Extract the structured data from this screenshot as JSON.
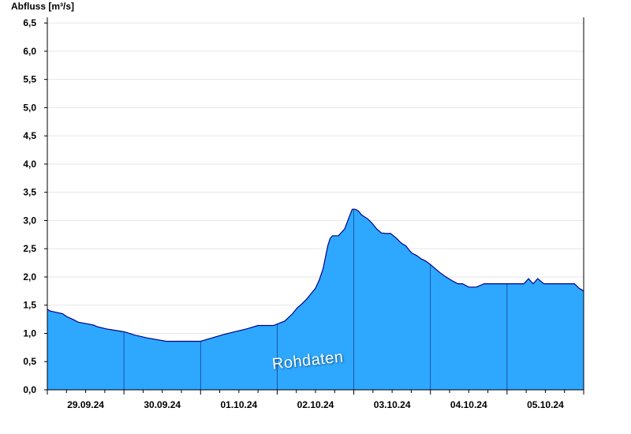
{
  "chart_data": {
    "type": "area",
    "ylabel": "Abfluss [m³/s]",
    "ylim": [
      0,
      6.6
    ],
    "yticks": [
      "0,0",
      "0,5",
      "1,0",
      "1,5",
      "2,0",
      "2,5",
      "3,0",
      "3,5",
      "4,0",
      "4,5",
      "5,0",
      "5,5",
      "6,0",
      "6,5"
    ],
    "xlim": [
      0,
      7
    ],
    "day_labels": [
      "29.09.24",
      "30.09.24",
      "01.10.24",
      "02.10.24",
      "03.10.24",
      "04.10.24",
      "05.10.24"
    ],
    "grid": true,
    "fill_color": "#2ea8ff",
    "line_color": "#00008b",
    "annotation": "Rohdaten",
    "series": [
      {
        "x": [
          0.0,
          0.03,
          0.2,
          0.25,
          0.33,
          0.4,
          0.6,
          0.65,
          0.77,
          0.95,
          1.0,
          1.14,
          1.3,
          1.55,
          1.9,
          2.0,
          2.15,
          2.3,
          2.45,
          2.6,
          2.75,
          2.85,
          2.95,
          3.1,
          3.2,
          3.26,
          3.32,
          3.38,
          3.44,
          3.5,
          3.55,
          3.6,
          3.63,
          3.66,
          3.69,
          3.72,
          3.75,
          3.8,
          3.88,
          3.95,
          3.98,
          4.02,
          4.06,
          4.1,
          4.18,
          4.24,
          4.3,
          4.36,
          4.42,
          4.48,
          4.56,
          4.62,
          4.68,
          4.72,
          4.76,
          4.82,
          4.88,
          4.94,
          5.0,
          5.06,
          5.12,
          5.18,
          5.24,
          5.3,
          5.36,
          5.42,
          5.5,
          5.6,
          5.7,
          5.8,
          5.9,
          6.0,
          6.15,
          6.22,
          6.28,
          6.34,
          6.4,
          6.48,
          6.55,
          6.6,
          6.7,
          6.8,
          6.88,
          6.94,
          7.0
        ],
        "y": [
          1.43,
          1.4,
          1.35,
          1.3,
          1.25,
          1.2,
          1.15,
          1.12,
          1.08,
          1.04,
          1.03,
          0.97,
          0.92,
          0.86,
          0.86,
          0.86,
          0.92,
          0.98,
          1.03,
          1.08,
          1.14,
          1.14,
          1.14,
          1.22,
          1.35,
          1.45,
          1.52,
          1.6,
          1.7,
          1.8,
          1.95,
          2.15,
          2.35,
          2.55,
          2.68,
          2.73,
          2.73,
          2.73,
          2.85,
          3.1,
          3.2,
          3.2,
          3.17,
          3.1,
          3.03,
          2.95,
          2.85,
          2.78,
          2.77,
          2.77,
          2.68,
          2.6,
          2.55,
          2.48,
          2.42,
          2.38,
          2.32,
          2.28,
          2.22,
          2.15,
          2.08,
          2.02,
          1.97,
          1.92,
          1.88,
          1.88,
          1.82,
          1.82,
          1.88,
          1.88,
          1.88,
          1.88,
          1.88,
          1.88,
          1.97,
          1.88,
          1.97,
          1.88,
          1.88,
          1.88,
          1.88,
          1.88,
          1.88,
          1.8,
          1.75
        ]
      }
    ]
  }
}
